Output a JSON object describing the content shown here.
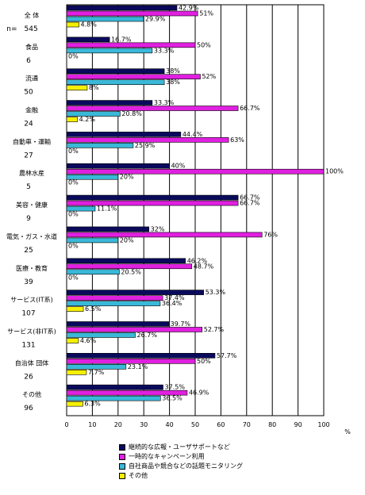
{
  "chart_data": {
    "type": "bar",
    "orientation": "horizontal",
    "categories": [
      {
        "name": "全 体",
        "n_label": "n=　545"
      },
      {
        "name": "食品",
        "n_label": "6"
      },
      {
        "name": "流通",
        "n_label": "50"
      },
      {
        "name": "金融",
        "n_label": "24"
      },
      {
        "name": "自動車・運輸",
        "n_label": "27"
      },
      {
        "name": "農林水産",
        "n_label": "5"
      },
      {
        "name": "美容・健康",
        "n_label": "9"
      },
      {
        "name": "電気・ガス・水道",
        "n_label": "25"
      },
      {
        "name": "医療・教育",
        "n_label": "39"
      },
      {
        "name": "サービス(IT系)",
        "n_label": "107"
      },
      {
        "name": "サービス(非IT系)",
        "n_label": "131"
      },
      {
        "name": "自治体 団体",
        "n_label": "26"
      },
      {
        "name": "その他",
        "n_label": "96"
      }
    ],
    "series": [
      {
        "name": "継続的な広報・ユーザサポートなど",
        "color": "#0a0a5c",
        "values": [
          42.9,
          16.7,
          38,
          33.3,
          44.4,
          40,
          66.7,
          32,
          46.2,
          53.3,
          39.7,
          57.7,
          37.5
        ],
        "labels": [
          "42.9%",
          "16.7%",
          "38%",
          "33.3%",
          "44.4%",
          "40%",
          "66.7%",
          "32%",
          "46.2%",
          "53.3%",
          "39.7%",
          "57.7%",
          "37.5%"
        ]
      },
      {
        "name": "一時的なキャンペーン利用",
        "color": "#e020e0",
        "values": [
          51,
          50,
          52,
          66.7,
          63,
          100,
          66.7,
          76,
          48.7,
          37.4,
          52.7,
          50,
          46.9
        ],
        "labels": [
          "51%",
          "50%",
          "52%",
          "66.7%",
          "63%",
          "100%",
          "66.7%",
          "76%",
          "48.7%",
          "37.4%",
          "52.7%",
          "50%",
          "46.9%"
        ]
      },
      {
        "name": "自社商品や競合などの話題モニタリング",
        "color": "#3ab8d8",
        "values": [
          29.9,
          33.3,
          38,
          20.8,
          25.9,
          20,
          11.1,
          20,
          20.5,
          36.4,
          26.7,
          23.1,
          36.5
        ],
        "labels": [
          "29.9%",
          "33.3%",
          "38%",
          "20.8%",
          "25.9%",
          "20%",
          "11.1%",
          "20%",
          "20.5%",
          "36.4%",
          "26.7%",
          "23.1%",
          "36.5%"
        ]
      },
      {
        "name": "その他",
        "color": "#f5f000",
        "values": [
          4.8,
          0,
          8,
          4.2,
          0,
          0,
          0,
          0,
          0,
          6.5,
          4.6,
          7.7,
          6.3
        ],
        "labels": [
          "4.8%",
          "0%",
          "8%",
          "4.2%",
          "0%",
          "0%",
          "0%",
          "0%",
          "0%",
          "6.5%",
          "4.6%",
          "7.7%",
          "6.3%"
        ]
      }
    ],
    "xlim": [
      0,
      100
    ],
    "xticks": [
      0,
      10,
      20,
      30,
      40,
      50,
      60,
      70,
      80,
      90,
      100
    ],
    "xunit": "%",
    "grid": true
  }
}
